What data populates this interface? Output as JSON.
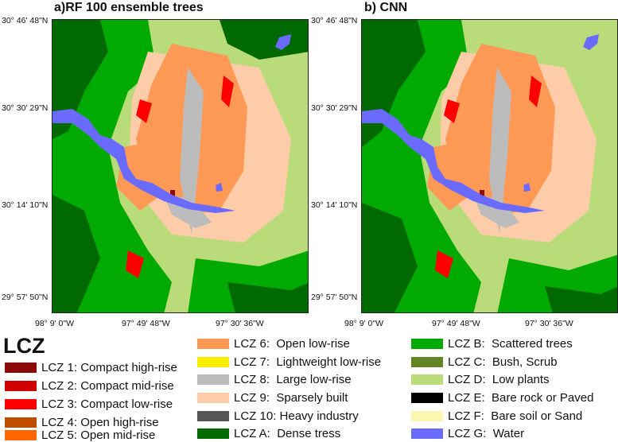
{
  "panels": [
    {
      "title": "a)RF 100 ensemble trees"
    },
    {
      "title": "b) CNN"
    }
  ],
  "latitude_labels": [
    "30° 46' 48\"N",
    "30° 30' 29\"N",
    "30° 14' 10\"N",
    "29° 57' 50\"N"
  ],
  "longitude_labels": [
    "98° 9' 0\"W",
    "97° 49' 48\"W",
    "97° 30' 36\"W"
  ],
  "legend": {
    "title": "LCZ",
    "columns": [
      [
        {
          "code": "LCZ 1:",
          "name": "Compact high-rise",
          "color": "#8c0a0a"
        },
        {
          "code": "LCZ 2:",
          "name": "Compact mid-rise",
          "color": "#d10000"
        },
        {
          "code": "LCZ 3:",
          "name": "Compact low-rise",
          "color": "#ff0000"
        },
        {
          "code": "LCZ 4:",
          "name": "Open high-rise",
          "color": "#bf4d00"
        },
        {
          "code": "LCZ 5:",
          "name": "Open mid-rise",
          "color": "#ff6600"
        }
      ],
      [
        {
          "code": "LCZ 6:",
          "name": "Open low-rise",
          "color": "#ff9955"
        },
        {
          "code": "LCZ 7:",
          "name": "Lightweight low-rise",
          "color": "#faee05"
        },
        {
          "code": "LCZ 8:",
          "name": "Large low-rise",
          "color": "#bcbcbc"
        },
        {
          "code": "LCZ 9:",
          "name": "Sparsely built",
          "color": "#ffccaa"
        },
        {
          "code": "LCZ 10:",
          "name": "Heavy industry",
          "color": "#555555"
        },
        {
          "code": "LCZ A:",
          "name": "Dense tress",
          "color": "#006a00"
        }
      ],
      [
        {
          "code": "LCZ B:",
          "name": "Scattered trees",
          "color": "#00aa00"
        },
        {
          "code": "LCZ C:",
          "name": "Bush, Scrub",
          "color": "#648525"
        },
        {
          "code": "LCZ D:",
          "name": "Low plants",
          "color": "#b9db79"
        },
        {
          "code": "LCZ E:",
          "name": "Bare rock or Paved",
          "color": "#000000"
        },
        {
          "code": "LCZ F:",
          "name": "Bare soil or Sand",
          "color": "#fbf7ae"
        },
        {
          "code": "LCZ G:",
          "name": "Water",
          "color": "#6a6aff"
        }
      ]
    ]
  }
}
